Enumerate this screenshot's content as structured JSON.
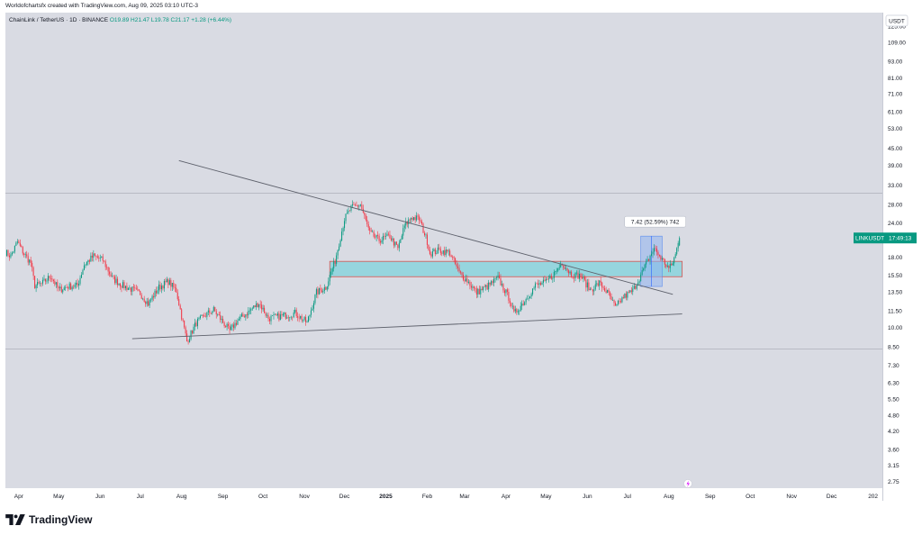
{
  "header": {
    "attribution": "Worldofchartsfx created with TradingView.com, Aug 09, 2025 03:10 UTC-3",
    "symbol": "ChainLink / TetherUS · 1D · BINANCE",
    "ohlc": {
      "open": "O19.89",
      "high": "H21.47",
      "low": "L19.78",
      "close": "C21.17",
      "change": "+1.28 (+6.44%)"
    }
  },
  "currency_label": "USDT",
  "price_badge": {
    "symbol": "LINKUSDT",
    "countdown": "17:49:13"
  },
  "measure_label": "7.42 (52.59%) 742",
  "brand": {
    "name": "TradingView"
  },
  "colors": {
    "up": "#089981",
    "down": "#f23645",
    "zone_fill": "#7fd3dc",
    "zone_border": "#d9534f",
    "measure_fill": "#8fb2f0",
    "trendline": "#5d606b",
    "background": "#d9dbe3"
  },
  "chart_data": {
    "type": "candlestick",
    "y_scale": "log",
    "ylim": [
      2.6,
      140
    ],
    "y_ticks": [
      125,
      109,
      93,
      81,
      71,
      61,
      53,
      45,
      39,
      33,
      28,
      24,
      18,
      15.5,
      13.5,
      11.5,
      10,
      8.5,
      7.3,
      6.3,
      5.5,
      4.8,
      4.2,
      3.6,
      3.15,
      2.75
    ],
    "y_tick_labels": [
      "125.00",
      "109.00",
      "93.00",
      "81.00",
      "71.00",
      "61.00",
      "53.00",
      "45.00",
      "39.00",
      "33.00",
      "28.00",
      "24.00",
      "18.00",
      "15.50",
      "13.50",
      "11.50",
      "10.00",
      "8.50",
      "7.30",
      "6.30",
      "5.50",
      "4.80",
      "4.20",
      "3.60",
      "3.15",
      "2.75"
    ],
    "x_range": [
      "2024-03-22",
      "2026-01-08"
    ],
    "x_ticks": [
      {
        "date": "2024-04-01",
        "label": "Apr"
      },
      {
        "date": "2024-05-01",
        "label": "May"
      },
      {
        "date": "2024-06-01",
        "label": "Jun"
      },
      {
        "date": "2024-07-01",
        "label": "Jul"
      },
      {
        "date": "2024-08-01",
        "label": "Aug"
      },
      {
        "date": "2024-09-01",
        "label": "Sep"
      },
      {
        "date": "2024-10-01",
        "label": "Oct"
      },
      {
        "date": "2024-11-01",
        "label": "Nov"
      },
      {
        "date": "2024-12-01",
        "label": "Dec"
      },
      {
        "date": "2025-01-01",
        "label": "2025"
      },
      {
        "date": "2025-02-01",
        "label": "Feb"
      },
      {
        "date": "2025-03-01",
        "label": "Mar"
      },
      {
        "date": "2025-04-01",
        "label": "Apr"
      },
      {
        "date": "2025-05-01",
        "label": "May"
      },
      {
        "date": "2025-06-01",
        "label": "Jun"
      },
      {
        "date": "2025-07-01",
        "label": "Jul"
      },
      {
        "date": "2025-08-01",
        "label": "Aug"
      },
      {
        "date": "2025-09-01",
        "label": "Sep"
      },
      {
        "date": "2025-10-01",
        "label": "Oct"
      },
      {
        "date": "2025-11-01",
        "label": "Nov"
      },
      {
        "date": "2025-12-01",
        "label": "Dec"
      },
      {
        "date": "2026-01-01",
        "label": "202"
      }
    ],
    "close_anchors": [
      [
        "2024-03-22",
        18.8
      ],
      [
        "2024-03-26",
        18.2
      ],
      [
        "2024-03-31",
        20.5
      ],
      [
        "2024-04-05",
        18.5
      ],
      [
        "2024-04-10",
        17.2
      ],
      [
        "2024-04-13",
        14.2
      ],
      [
        "2024-04-18",
        14.4
      ],
      [
        "2024-04-25",
        15.4
      ],
      [
        "2024-05-01",
        13.7
      ],
      [
        "2024-05-08",
        14.1
      ],
      [
        "2024-05-15",
        14.2
      ],
      [
        "2024-05-20",
        16.9
      ],
      [
        "2024-05-27",
        18.2
      ],
      [
        "2024-06-03",
        17.6
      ],
      [
        "2024-06-10",
        15.1
      ],
      [
        "2024-06-18",
        14.2
      ],
      [
        "2024-06-24",
        13.8
      ],
      [
        "2024-07-01",
        13.3
      ],
      [
        "2024-07-07",
        12.2
      ],
      [
        "2024-07-15",
        14.0
      ],
      [
        "2024-07-22",
        14.7
      ],
      [
        "2024-07-28",
        13.6
      ],
      [
        "2024-08-05",
        8.9
      ],
      [
        "2024-08-12",
        10.4
      ],
      [
        "2024-08-20",
        11.2
      ],
      [
        "2024-08-25",
        11.6
      ],
      [
        "2024-09-06",
        9.7
      ],
      [
        "2024-09-12",
        10.6
      ],
      [
        "2024-09-20",
        11.4
      ],
      [
        "2024-09-28",
        12.3
      ],
      [
        "2024-10-05",
        10.8
      ],
      [
        "2024-10-15",
        11.0
      ],
      [
        "2024-10-25",
        11.3
      ],
      [
        "2024-11-03",
        10.4
      ],
      [
        "2024-11-10",
        13.4
      ],
      [
        "2024-11-17",
        14.0
      ],
      [
        "2024-11-24",
        17.5
      ],
      [
        "2024-12-01",
        24.8
      ],
      [
        "2024-12-06",
        27.2
      ],
      [
        "2024-12-13",
        28.0
      ],
      [
        "2024-12-20",
        22.0
      ],
      [
        "2024-12-27",
        20.8
      ],
      [
        "2025-01-04",
        21.5
      ],
      [
        "2025-01-10",
        19.3
      ],
      [
        "2025-01-15",
        23.4
      ],
      [
        "2025-01-20",
        25.2
      ],
      [
        "2025-01-26",
        24.8
      ],
      [
        "2025-02-01",
        20.6
      ],
      [
        "2025-02-03",
        18.6
      ],
      [
        "2025-02-10",
        19.1
      ],
      [
        "2025-02-18",
        18.7
      ],
      [
        "2025-02-25",
        15.8
      ],
      [
        "2025-03-03",
        14.8
      ],
      [
        "2025-03-10",
        13.4
      ],
      [
        "2025-03-18",
        14.1
      ],
      [
        "2025-03-26",
        15.1
      ],
      [
        "2025-04-04",
        12.6
      ],
      [
        "2025-04-07",
        11.2
      ],
      [
        "2025-04-15",
        12.5
      ],
      [
        "2025-04-23",
        14.2
      ],
      [
        "2025-05-01",
        14.6
      ],
      [
        "2025-05-08",
        15.9
      ],
      [
        "2025-05-13",
        17.2
      ],
      [
        "2025-05-20",
        15.6
      ],
      [
        "2025-05-27",
        15.4
      ],
      [
        "2025-06-03",
        13.7
      ],
      [
        "2025-06-10",
        14.5
      ],
      [
        "2025-06-16",
        13.4
      ],
      [
        "2025-06-22",
        11.8
      ],
      [
        "2025-06-28",
        12.9
      ],
      [
        "2025-07-05",
        13.6
      ],
      [
        "2025-07-11",
        15.5
      ],
      [
        "2025-07-17",
        17.8
      ],
      [
        "2025-07-21",
        19.4
      ],
      [
        "2025-07-25",
        18.2
      ],
      [
        "2025-08-01",
        16.4
      ],
      [
        "2025-08-03",
        16.8
      ],
      [
        "2025-08-06",
        18.4
      ],
      [
        "2025-08-09",
        21.17
      ]
    ],
    "annotations": {
      "descending_trendline": {
        "from": [
          "2024-07-30",
          40.5
        ],
        "to": [
          "2025-08-04",
          13.2
        ]
      },
      "ascending_trendline": {
        "from": [
          "2024-06-25",
          9.1
        ],
        "to": [
          "2025-08-11",
          11.2
        ]
      },
      "horizontal_levels": [
        30.8,
        8.35
      ],
      "zone": {
        "from": "2024-11-20",
        "to": "2025-08-11",
        "low": 15.3,
        "high": 17.4
      },
      "measure": {
        "from": "2025-07-11",
        "to": "2025-07-27",
        "low": 14.1,
        "high": 21.5
      },
      "measure_label_text": "7.42 (52.59%) 742"
    }
  }
}
